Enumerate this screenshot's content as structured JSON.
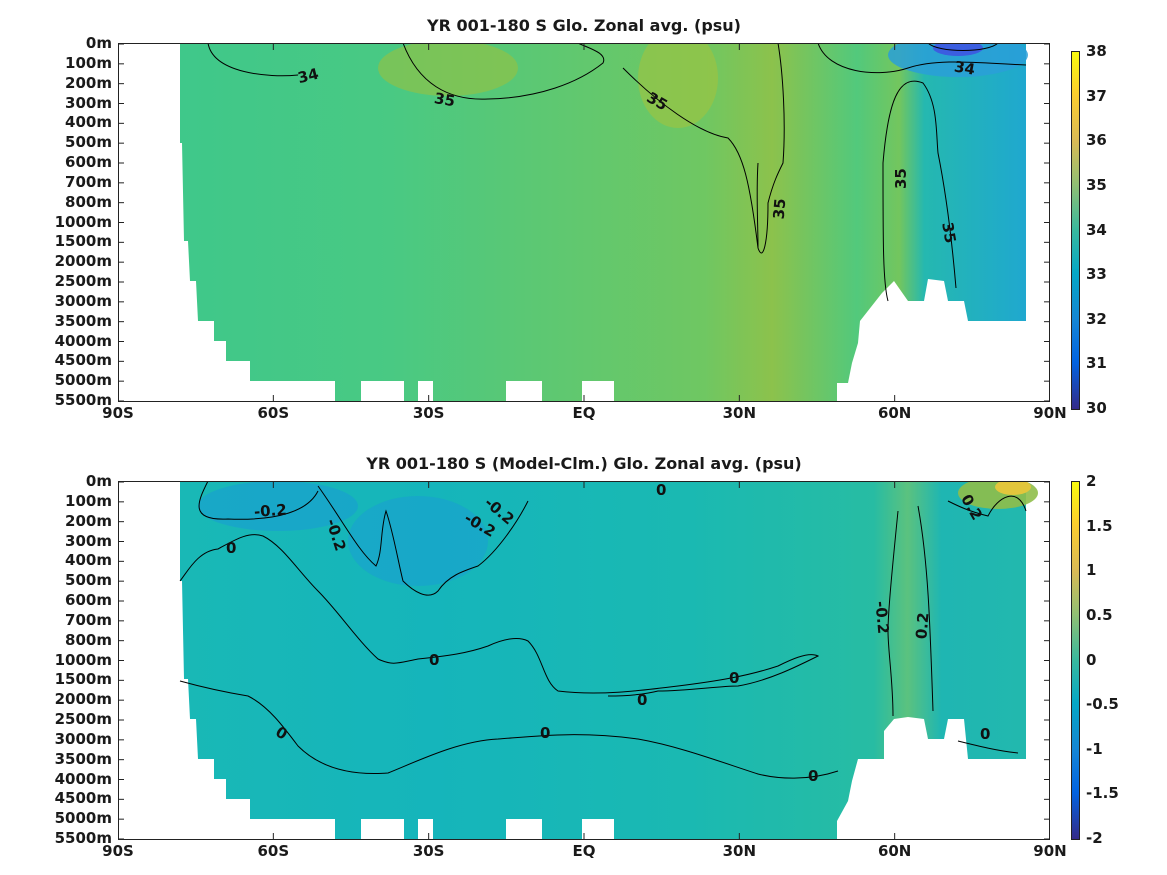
{
  "chart_data": [
    {
      "type": "heatmap",
      "title": "YR 001-180 S Glo. Zonal avg. (psu)",
      "x_ticks": [
        "90S",
        "60S",
        "30S",
        "EQ",
        "30N",
        "60N",
        "90N"
      ],
      "x_values": [
        -90,
        -60,
        -30,
        0,
        30,
        60,
        90
      ],
      "xlim": [
        -90,
        90
      ],
      "y_ticks": [
        "0m",
        "100m",
        "200m",
        "300m",
        "400m",
        "500m",
        "600m",
        "700m",
        "800m",
        "1000m",
        "1500m",
        "2000m",
        "2500m",
        "3000m",
        "3500m",
        "4000m",
        "4500m",
        "5000m",
        "5500m"
      ],
      "colorbar": {
        "min": 30,
        "max": 38,
        "ticks": [
          "30",
          "31",
          "32",
          "33",
          "34",
          "35",
          "36",
          "37",
          "38"
        ],
        "colormap": "parula"
      },
      "contour_labels": [
        "34",
        "35",
        "35",
        "35",
        "35",
        "35",
        "34"
      ],
      "grid": false
    },
    {
      "type": "heatmap",
      "title": "YR 001-180 S (Model-Clm.) Glo. Zonal avg. (psu)",
      "x_ticks": [
        "90S",
        "60S",
        "30S",
        "EQ",
        "30N",
        "60N",
        "90N"
      ],
      "x_values": [
        -90,
        -60,
        -30,
        0,
        30,
        60,
        90
      ],
      "xlim": [
        -90,
        90
      ],
      "y_ticks": [
        "0m",
        "100m",
        "200m",
        "300m",
        "400m",
        "500m",
        "600m",
        "700m",
        "800m",
        "1000m",
        "1500m",
        "2000m",
        "2500m",
        "3000m",
        "3500m",
        "4000m",
        "4500m",
        "5000m",
        "5500m"
      ],
      "colorbar": {
        "min": -2,
        "max": 2,
        "ticks": [
          "-2",
          "-1.5",
          "-1",
          "-0.5",
          "0",
          "0.5",
          "1",
          "1.5",
          "2"
        ],
        "colormap": "parula"
      },
      "contour_labels": [
        "-0.2",
        "-0.2",
        "-0.2",
        "-0.2",
        "0",
        "0",
        "0",
        "0",
        "0",
        "0",
        "0",
        "0",
        "-0.2",
        "0.2",
        "0",
        "0.2"
      ],
      "grid": false
    }
  ]
}
